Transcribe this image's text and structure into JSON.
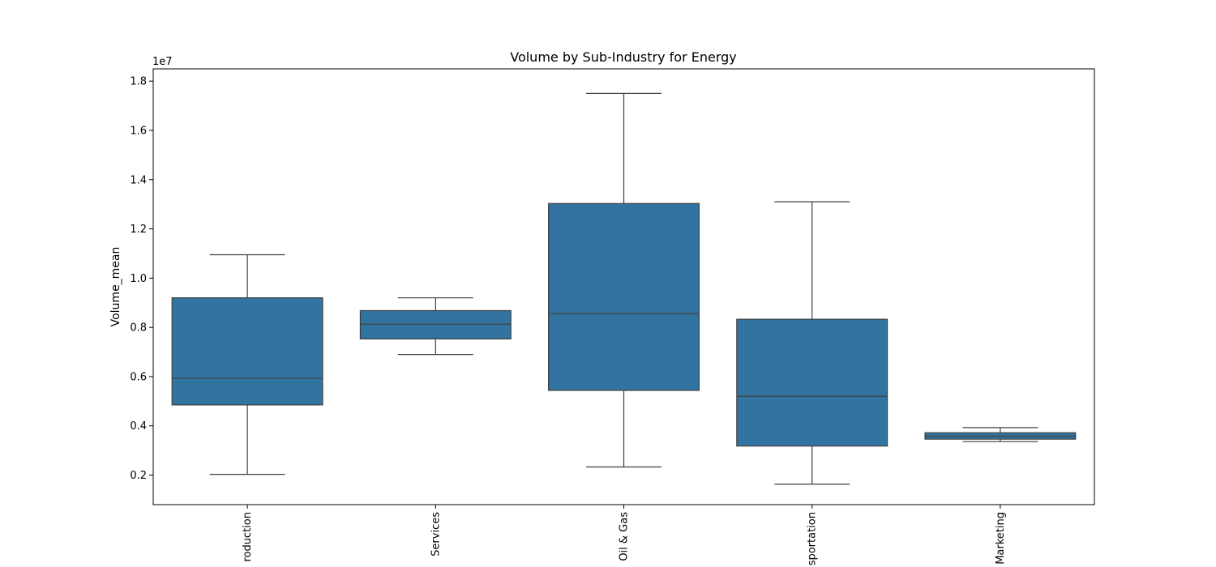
{
  "chart_data": {
    "type": "box",
    "title": "Volume by Sub-Industry for Energy",
    "xlabel": "",
    "ylabel": "Volume_mean",
    "y_offset_label": "1e7",
    "y_scale_factor": 10000000,
    "ylim": [
      800000,
      18500000
    ],
    "yticks": [
      2000000,
      4000000,
      6000000,
      8000000,
      10000000,
      12000000,
      14000000,
      16000000,
      18000000
    ],
    "ytick_labels": [
      "0.2",
      "0.4",
      "0.6",
      "0.8",
      "1.0",
      "1.2",
      "1.4",
      "1.6",
      "1.8"
    ],
    "categories": [
      "roduction",
      "Services",
      "Oil & Gas",
      "sportation",
      "Marketing"
    ],
    "box_color": "#3274a1",
    "line_color": "#3f3f3f",
    "grid": false,
    "boxes": [
      {
        "category": "roduction",
        "whisker_low": 2030000,
        "q1": 4850000,
        "median": 5930000,
        "q3": 9200000,
        "whisker_high": 10950000
      },
      {
        "category": "Services",
        "whisker_low": 6900000,
        "q1": 7530000,
        "median": 8130000,
        "q3": 8680000,
        "whisker_high": 9200000
      },
      {
        "category": "Oil & Gas",
        "whisker_low": 2330000,
        "q1": 5440000,
        "median": 8560000,
        "q3": 13030000,
        "whisker_high": 17500000
      },
      {
        "category": "sportation",
        "whisker_low": 1630000,
        "q1": 3180000,
        "median": 5200000,
        "q3": 8330000,
        "whisker_high": 13100000
      },
      {
        "category": "Marketing",
        "whisker_low": 3360000,
        "q1": 3460000,
        "median": 3580000,
        "q3": 3720000,
        "whisker_high": 3930000
      }
    ]
  }
}
